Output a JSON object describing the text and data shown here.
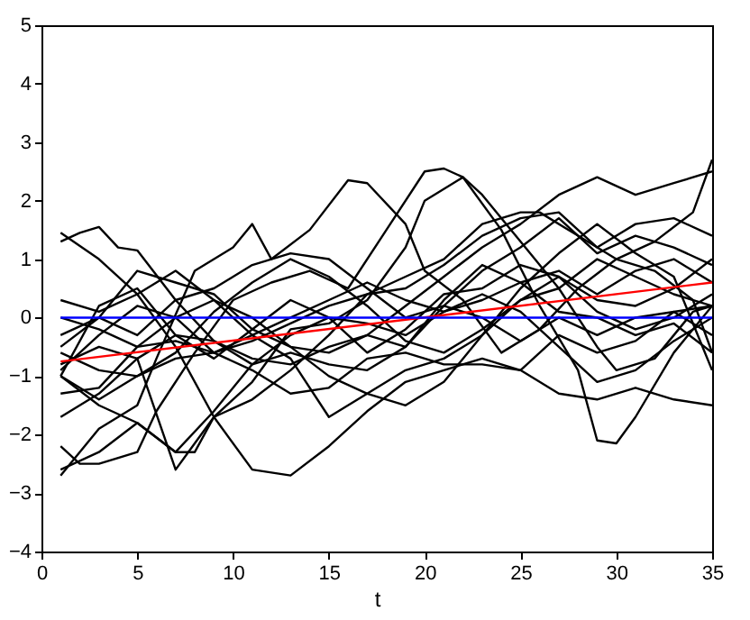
{
  "chart_data": {
    "type": "line",
    "xlabel": "t",
    "xlim": [
      0,
      35
    ],
    "xticks": [
      0,
      5,
      10,
      15,
      20,
      25,
      30,
      35
    ],
    "ylim": [
      -4,
      5
    ],
    "yticks": [
      -4,
      -3,
      -2,
      -1,
      0,
      1,
      2,
      3,
      4,
      5
    ],
    "grid": false,
    "legend": false,
    "series": [
      {
        "color": "#000000",
        "x": [
          1,
          3,
          5,
          7,
          9,
          11,
          13,
          15,
          17,
          19,
          21,
          23,
          25,
          27,
          29,
          31,
          33,
          35
        ],
        "values": [
          1.45,
          1.0,
          0.4,
          -0.5,
          -1.7,
          -2.6,
          -2.7,
          -2.2,
          -1.6,
          -1.1,
          -0.9,
          -0.7,
          -0.9,
          -0.3,
          -0.6,
          -0.4,
          0.1,
          0.2
        ]
      },
      {
        "color": "#000000",
        "x": [
          1,
          2,
          3,
          4,
          5,
          7,
          9,
          11,
          13,
          15,
          17,
          19,
          21,
          23,
          25,
          27,
          29,
          31,
          33,
          35
        ],
        "values": [
          1.3,
          1.45,
          1.55,
          1.2,
          1.15,
          0.3,
          -0.4,
          -0.8,
          -0.6,
          -0.8,
          -0.9,
          -0.5,
          0.2,
          0.8,
          1.2,
          1.7,
          1.1,
          1.4,
          1.2,
          0.9
        ]
      },
      {
        "color": "#000000",
        "x": [
          1,
          3,
          5,
          6,
          8,
          10,
          11,
          12,
          14,
          16,
          17,
          19,
          20,
          22,
          24,
          26,
          28,
          30,
          32,
          34,
          35
        ],
        "values": [
          -2.7,
          -1.9,
          -1.5,
          -0.7,
          0.8,
          1.2,
          1.6,
          1.0,
          1.5,
          2.35,
          2.3,
          1.6,
          0.8,
          0.3,
          -0.6,
          -0.2,
          0.5,
          1.0,
          0.8,
          0.3,
          -0.6
        ]
      },
      {
        "color": "#000000",
        "x": [
          1,
          2,
          3,
          5,
          6,
          8,
          10,
          12,
          14,
          16,
          18,
          20,
          21,
          22,
          23,
          25,
          27,
          29,
          30,
          32,
          34,
          35
        ],
        "values": [
          -2.2,
          -2.5,
          -2.5,
          -2.3,
          -1.6,
          -0.6,
          0.3,
          0.6,
          0.8,
          0.5,
          1.5,
          2.5,
          2.55,
          2.4,
          2.1,
          1.3,
          0.5,
          -0.5,
          -0.9,
          -0.7,
          0.1,
          0.2
        ]
      },
      {
        "color": "#000000",
        "x": [
          1,
          3,
          5,
          7,
          8,
          9,
          11,
          13,
          15,
          17,
          19,
          20,
          22,
          24,
          26,
          28,
          29,
          30,
          31,
          33,
          35
        ],
        "values": [
          -2.6,
          -2.3,
          -1.8,
          -2.3,
          -2.3,
          -1.7,
          -1.1,
          -0.2,
          -0.1,
          0.3,
          1.2,
          2.0,
          2.4,
          1.5,
          0.2,
          -0.9,
          -2.1,
          -2.15,
          -1.7,
          -0.6,
          0.2
        ]
      },
      {
        "color": "#000000",
        "x": [
          1,
          3,
          5,
          7,
          9,
          11,
          13,
          15,
          17,
          19,
          21,
          23,
          25,
          26,
          28,
          30,
          32,
          34,
          35
        ],
        "values": [
          -1.7,
          -1.3,
          -0.7,
          -2.6,
          -1.7,
          -1.4,
          -0.9,
          -0.3,
          0.4,
          0.7,
          1.0,
          1.6,
          1.8,
          1.8,
          1.4,
          1.0,
          1.3,
          1.8,
          2.7
        ]
      },
      {
        "color": "#000000",
        "x": [
          1,
          3,
          5,
          7,
          9,
          11,
          13,
          15,
          17,
          19,
          21,
          23,
          25,
          27,
          29,
          31,
          33,
          35
        ],
        "values": [
          -1.3,
          -1.2,
          -0.5,
          0.0,
          -0.6,
          -0.9,
          -1.3,
          -1.2,
          -0.7,
          -0.6,
          -0.8,
          -0.8,
          -0.9,
          -1.3,
          -1.4,
          -1.2,
          -1.4,
          -1.5
        ]
      },
      {
        "color": "#000000",
        "x": [
          1,
          3,
          5,
          7,
          9,
          11,
          13,
          15,
          17,
          19,
          21,
          23,
          25,
          27,
          29,
          31,
          33,
          35
        ],
        "values": [
          -0.9,
          -0.3,
          0.2,
          0.0,
          0.3,
          0.0,
          -0.5,
          -1.0,
          -1.3,
          -1.5,
          -1.1,
          -0.3,
          0.5,
          1.1,
          1.6,
          1.1,
          0.7,
          -0.9
        ]
      },
      {
        "color": "#000000",
        "x": [
          1,
          3,
          5,
          7,
          9,
          11,
          13,
          15,
          17,
          19,
          21,
          23,
          25,
          27,
          29,
          31,
          33,
          35
        ],
        "values": [
          -0.5,
          0.0,
          0.8,
          0.6,
          0.4,
          -0.2,
          -0.5,
          -0.6,
          -0.3,
          0.2,
          0.7,
          1.2,
          1.6,
          2.1,
          2.4,
          2.1,
          2.3,
          2.5
        ]
      },
      {
        "color": "#000000",
        "x": [
          1,
          3,
          5,
          7,
          9,
          11,
          13,
          15,
          17,
          19,
          21,
          23,
          25,
          27,
          29,
          31,
          33,
          35
        ],
        "values": [
          -1.0,
          0.2,
          0.5,
          -0.3,
          -0.7,
          -0.2,
          0.3,
          0.0,
          -0.6,
          -0.2,
          0.4,
          0.5,
          0.9,
          0.7,
          0.3,
          0.2,
          0.5,
          1.0
        ]
      },
      {
        "color": "#000000",
        "x": [
          1,
          3,
          5,
          7,
          9,
          11,
          13,
          15,
          17,
          19,
          21,
          23,
          25,
          27,
          29,
          31,
          33,
          35
        ],
        "values": [
          -0.6,
          -0.9,
          -1.0,
          -0.6,
          0.1,
          0.6,
          1.0,
          0.7,
          0.2,
          -0.4,
          -0.6,
          -0.2,
          0.3,
          0.7,
          0.1,
          -0.2,
          0.0,
          0.4
        ]
      },
      {
        "color": "#000000",
        "x": [
          1,
          3,
          5,
          7,
          9,
          11,
          13,
          15,
          17,
          19,
          21,
          23,
          25,
          27,
          29,
          31,
          33,
          35
        ],
        "values": [
          -0.8,
          -0.5,
          -0.7,
          -0.3,
          -0.4,
          -0.7,
          -0.8,
          -0.5,
          -0.3,
          -0.5,
          0.3,
          0.9,
          0.6,
          0.8,
          0.4,
          0.8,
          1.0,
          0.6
        ]
      },
      {
        "color": "#000000",
        "x": [
          1,
          3,
          5,
          7,
          9,
          11,
          13,
          15,
          17,
          19,
          21,
          23,
          25,
          27,
          29,
          31,
          33,
          35
        ],
        "values": [
          -0.3,
          0.0,
          -0.3,
          0.3,
          0.5,
          0.9,
          1.1,
          1.0,
          0.5,
          0.0,
          0.2,
          0.0,
          -0.4,
          0.0,
          -0.3,
          0.0,
          0.1,
          -0.3
        ]
      },
      {
        "color": "#000000",
        "x": [
          1,
          3,
          5,
          7,
          9,
          11,
          13,
          15,
          17,
          19,
          21,
          23,
          25,
          27,
          29,
          31,
          33,
          35
        ],
        "values": [
          -1.0,
          -1.4,
          -1.0,
          -0.7,
          -0.6,
          -0.3,
          0.0,
          0.3,
          0.6,
          0.3,
          0.1,
          0.3,
          0.6,
          0.1,
          0.0,
          -0.3,
          -0.1,
          -0.6
        ]
      },
      {
        "color": "#000000",
        "x": [
          1,
          3,
          5,
          7,
          9,
          11,
          13,
          15,
          17,
          19,
          21,
          23,
          25,
          27,
          29,
          31,
          33,
          35
        ],
        "values": [
          0.0,
          -0.2,
          -0.5,
          -0.4,
          -0.6,
          -0.4,
          -0.1,
          0.2,
          0.4,
          0.5,
          0.9,
          1.4,
          1.7,
          1.8,
          1.2,
          1.6,
          1.7,
          1.4
        ]
      },
      {
        "color": "#000000",
        "x": [
          1,
          3,
          5,
          7,
          9,
          11,
          13,
          15,
          17,
          19,
          21,
          23,
          25,
          27,
          29,
          31,
          33,
          35
        ],
        "values": [
          -1.0,
          -1.5,
          -1.8,
          -2.3,
          -1.6,
          -0.8,
          -0.3,
          0.0,
          -0.1,
          -0.3,
          0.1,
          0.4,
          0.1,
          -0.5,
          -1.1,
          -0.9,
          -0.4,
          0.0
        ]
      },
      {
        "color": "#000000",
        "x": [
          1,
          3,
          5,
          7,
          9,
          11,
          13,
          15,
          17,
          19,
          21,
          23,
          25,
          27,
          29,
          31,
          33,
          35
        ],
        "values": [
          0.3,
          0.1,
          0.4,
          0.8,
          0.3,
          -0.3,
          -0.7,
          -1.7,
          -1.3,
          -0.9,
          -0.7,
          -0.3,
          0.3,
          0.5,
          1.0,
          0.7,
          0.4,
          0.2
        ]
      },
      {
        "color": "#ff0000",
        "x": [
          1,
          35
        ],
        "values": [
          -0.75,
          0.6
        ]
      },
      {
        "color": "#0000ff",
        "x": [
          1,
          35
        ],
        "values": [
          0,
          0
        ]
      }
    ]
  }
}
